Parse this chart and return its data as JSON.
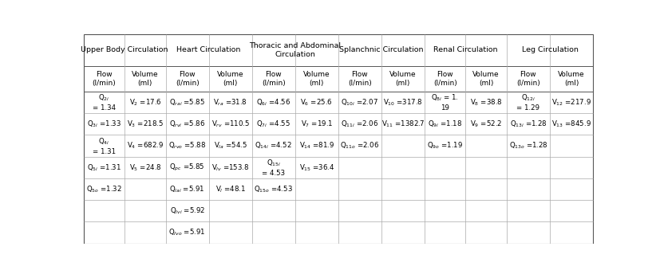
{
  "figsize": [
    8.27,
    3.44
  ],
  "dpi": 100,
  "sections": [
    {
      "name": "Upper Body Circulation",
      "span": [
        0,
        1
      ]
    },
    {
      "name": "Heart Circulation",
      "span": [
        2,
        3
      ]
    },
    {
      "name": "Thoracic and Abdominal\nCirculation",
      "span": [
        4,
        5
      ]
    },
    {
      "name": "Splanchnic Circulation",
      "span": [
        6,
        7
      ]
    },
    {
      "name": "Renal Circulation",
      "span": [
        8,
        9
      ]
    },
    {
      "name": "Leg Circulation",
      "span": [
        10,
        11
      ]
    }
  ],
  "col_headers": [
    "Flow\n(l/min)",
    "Volume\n(ml)",
    "Flow\n(l/min)",
    "Volume\n(ml)",
    "Flow\n(l/min)",
    "Volume\n(ml)",
    "Flow\n(l/min)",
    "Volume\n(ml)",
    "Flow\n(l/min)",
    "Volume\n(ml)",
    "Flow\n(l/min)",
    "Volume\n(ml)"
  ],
  "rows": [
    [
      "Q$_{2i}$\n= 1.34",
      "V$_2$ =17.6",
      "Q$_{rai}$ =5.85",
      "V$_{ra}$ =31.8",
      "Q$_{6i}$ =4.56",
      "V$_6$ =25.6",
      "Q$_{10i}$ =2.07",
      "V$_{10}$ =317.8",
      "Q$_{8i}$ = 1.\n19",
      "V$_8$ =38.8",
      "Q$_{12i}$\n= 1.29",
      "V$_{12}$ =217.9"
    ],
    [
      "Q$_{3i}$ =1.33",
      "V$_3$ =218.5",
      "Q$_{rvi}$ =5.86",
      "V$_{rv}$ =110.5",
      "Q$_{7i}$ =4.55",
      "V$_7$ =19.1",
      "Q$_{11i}$ =2.06",
      "V$_{11}$ =1382.7",
      "Q$_{9i}$ =1.18",
      "V$_9$ =52.2",
      "Q$_{13i}$ =1.28",
      "V$_{13}$ =845.9"
    ],
    [
      "Q$_{4i}$\n= 1.31",
      "V$_4$ =682.9",
      "Q$_{rvo}$ =5.88",
      "V$_{la}$ =54.5",
      "Q$_{14i}$ =4.52",
      "V$_{14}$ =81.9",
      "Q$_{11o}$ =2.06",
      "",
      "Q$_{9o}$ =1.19",
      "",
      "Q$_{13o}$ =1.28",
      ""
    ],
    [
      "Q$_{5i}$ =1.31",
      "V$_5$ =24.8",
      "Q$_{pc}$ =5.85",
      "V$_{lv}$ =153.8",
      "Q$_{15i}$\n= 4.53",
      "V$_{15}$ =36.4",
      "",
      "",
      "",
      "",
      "",
      ""
    ],
    [
      "Q$_{5o}$ =1.32",
      "",
      "Q$_{lai}$ =5.91",
      "V$_l$ =48.1",
      "Q$_{15o}$ =4.53",
      "",
      "",
      "",
      "",
      "",
      "",
      ""
    ],
    [
      "",
      "",
      "Q$_{lvi}$ =5.92",
      "",
      "",
      "",
      "",
      "",
      "",
      "",
      "",
      ""
    ],
    [
      "",
      "",
      "Q$_{lvo}$ =5.91",
      "",
      "",
      "",
      "",
      "",
      "",
      "",
      "",
      ""
    ]
  ],
  "background_color": "#ffffff",
  "line_color": "#aaaaaa",
  "outer_line_color": "#555555",
  "text_color": "#000000",
  "cell_font_size": 6.2,
  "header_font_size": 6.5,
  "section_font_size": 6.8
}
